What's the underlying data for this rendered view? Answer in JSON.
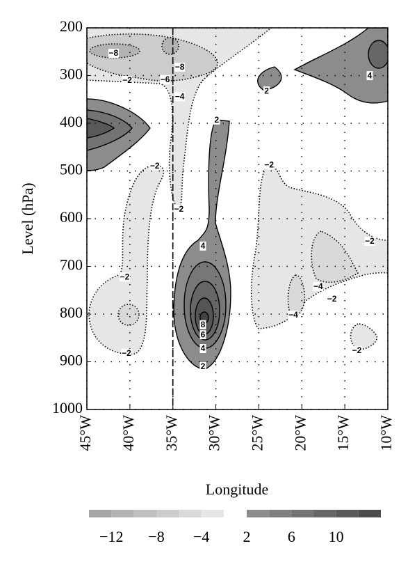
{
  "chart_data": {
    "type": "contour",
    "x_label": "Longitude",
    "y_label": "Level (hPa)",
    "xlim": [
      -45,
      -10
    ],
    "xticks": [
      {
        "value": -45,
        "label": "45°W"
      },
      {
        "value": -40,
        "label": "40°W"
      },
      {
        "value": -35,
        "label": "35°W"
      },
      {
        "value": -30,
        "label": "30°W"
      },
      {
        "value": -25,
        "label": "25°W"
      },
      {
        "value": -20,
        "label": "20°W"
      },
      {
        "value": -15,
        "label": "15°W"
      },
      {
        "value": -10,
        "label": "10°W"
      }
    ],
    "ylim": [
      1000,
      200
    ],
    "yticks": [
      200,
      300,
      400,
      500,
      600,
      700,
      800,
      900,
      1000
    ],
    "grid": true,
    "vline": -35,
    "contour_labels": [
      {
        "value": -8,
        "label": "−8",
        "x": -41.9,
        "y": 254
      },
      {
        "value": -2,
        "label": "−2",
        "x": -40.3,
        "y": 311
      },
      {
        "value": -8,
        "label": "−8",
        "x": -34.2,
        "y": 283
      },
      {
        "value": -6,
        "label": "−6",
        "x": -35.9,
        "y": 309
      },
      {
        "value": -4,
        "label": "−4",
        "x": -34.2,
        "y": 345
      },
      {
        "value": 2,
        "x": -29.9,
        "y": 394
      },
      {
        "value": 2,
        "x": -24.1,
        "y": 333
      },
      {
        "value": 4,
        "x": -12.1,
        "y": 301
      },
      {
        "value": -2,
        "label": "−2",
        "x": -37.1,
        "y": 490
      },
      {
        "value": -2,
        "label": "−2",
        "x": -23.8,
        "y": 488
      },
      {
        "value": -2,
        "label": "−2",
        "x": -34.3,
        "y": 581
      },
      {
        "value": 4,
        "x": -31.5,
        "y": 658
      },
      {
        "value": -2,
        "label": "−2",
        "x": -40.6,
        "y": 723
      },
      {
        "value": -2,
        "label": "−2",
        "x": -12.1,
        "y": 648
      },
      {
        "value": -4,
        "label": "−4",
        "x": -18.1,
        "y": 743
      },
      {
        "value": -2,
        "label": "−2",
        "x": -16.5,
        "y": 769
      },
      {
        "value": -4,
        "label": "−4",
        "x": -21.0,
        "y": 803
      },
      {
        "value": 8,
        "x": -31.5,
        "y": 823
      },
      {
        "value": 6,
        "x": -31.5,
        "y": 844
      },
      {
        "value": 4,
        "x": -31.5,
        "y": 873
      },
      {
        "value": 2,
        "x": -31.5,
        "y": 911
      },
      {
        "value": -2,
        "label": "−2",
        "x": -40.4,
        "y": 883
      },
      {
        "value": -2,
        "label": "−2",
        "x": -13.6,
        "y": 877
      }
    ],
    "colorbar": {
      "ticks": [
        {
          "value": -12,
          "label": "−12"
        },
        {
          "value": -8,
          "label": "−8"
        },
        {
          "value": -4,
          "label": "−4"
        },
        2,
        6,
        10
      ],
      "segments": [
        {
          "from": -14,
          "to": -12,
          "color": "#a6a6a6"
        },
        {
          "from": -12,
          "to": -10,
          "color": "#b3b3b3"
        },
        {
          "from": -10,
          "to": -8,
          "color": "#bfbfbf"
        },
        {
          "from": -8,
          "to": -6,
          "color": "#cccccc"
        },
        {
          "from": -6,
          "to": -4,
          "color": "#d9d9d9"
        },
        {
          "from": -4,
          "to": -2,
          "color": "#e6e6e6"
        },
        {
          "from": 2,
          "to": 4,
          "color": "#8c8c8c"
        },
        {
          "from": 4,
          "to": 6,
          "color": "#808080"
        },
        {
          "from": 6,
          "to": 8,
          "color": "#737373"
        },
        {
          "from": 8,
          "to": 10,
          "color": "#666666"
        },
        {
          "from": 10,
          "to": 12,
          "color": "#595959"
        },
        {
          "from": 12,
          "to": 14,
          "color": "#4d4d4d"
        }
      ]
    }
  }
}
